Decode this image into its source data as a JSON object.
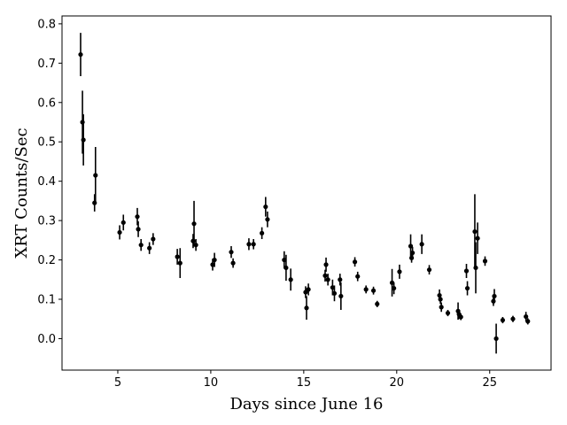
{
  "chart_data": {
    "type": "scatter",
    "title": "",
    "xlabel": "Days since June 16",
    "ylabel": "XRT Counts/Sec",
    "xlim": [
      2.0,
      28.3
    ],
    "ylim": [
      -0.08,
      0.82
    ],
    "xticks": [
      5,
      10,
      15,
      20,
      25
    ],
    "xtick_labels": [
      "5",
      "10",
      "15",
      "20",
      "25"
    ],
    "yticks": [
      0.0,
      0.1,
      0.2,
      0.3,
      0.4,
      0.5,
      0.6,
      0.7,
      0.8
    ],
    "ytick_labels": [
      "0.0",
      "0.1",
      "0.2",
      "0.3",
      "0.4",
      "0.5",
      "0.6",
      "0.7",
      "0.8"
    ],
    "grid": false,
    "marker_color": "#000000",
    "points": [
      {
        "x": 3.0,
        "y": 0.722,
        "err": 0.055
      },
      {
        "x": 3.1,
        "y": 0.55,
        "err": 0.08
      },
      {
        "x": 3.15,
        "y": 0.505,
        "err": 0.065
      },
      {
        "x": 3.75,
        "y": 0.345,
        "err": 0.022
      },
      {
        "x": 3.8,
        "y": 0.415,
        "err": 0.072
      },
      {
        "x": 5.1,
        "y": 0.27,
        "err": 0.018
      },
      {
        "x": 5.3,
        "y": 0.295,
        "err": 0.02
      },
      {
        "x": 6.05,
        "y": 0.31,
        "err": 0.022
      },
      {
        "x": 6.1,
        "y": 0.278,
        "err": 0.02
      },
      {
        "x": 6.25,
        "y": 0.238,
        "err": 0.015
      },
      {
        "x": 6.7,
        "y": 0.23,
        "err": 0.015
      },
      {
        "x": 6.9,
        "y": 0.253,
        "err": 0.015
      },
      {
        "x": 8.2,
        "y": 0.208,
        "err": 0.02
      },
      {
        "x": 8.35,
        "y": 0.192,
        "err": 0.038
      },
      {
        "x": 9.05,
        "y": 0.248,
        "err": 0.018
      },
      {
        "x": 9.1,
        "y": 0.292,
        "err": 0.058
      },
      {
        "x": 9.2,
        "y": 0.238,
        "err": 0.015
      },
      {
        "x": 10.1,
        "y": 0.188,
        "err": 0.015
      },
      {
        "x": 10.2,
        "y": 0.2,
        "err": 0.018
      },
      {
        "x": 11.1,
        "y": 0.22,
        "err": 0.015
      },
      {
        "x": 11.2,
        "y": 0.192,
        "err": 0.012
      },
      {
        "x": 12.05,
        "y": 0.24,
        "err": 0.015
      },
      {
        "x": 12.3,
        "y": 0.24,
        "err": 0.013
      },
      {
        "x": 12.75,
        "y": 0.268,
        "err": 0.015
      },
      {
        "x": 12.95,
        "y": 0.335,
        "err": 0.025
      },
      {
        "x": 13.05,
        "y": 0.303,
        "err": 0.02
      },
      {
        "x": 13.95,
        "y": 0.2,
        "err": 0.022
      },
      {
        "x": 14.05,
        "y": 0.18,
        "err": 0.033
      },
      {
        "x": 14.3,
        "y": 0.15,
        "err": 0.028
      },
      {
        "x": 15.1,
        "y": 0.118,
        "err": 0.015
      },
      {
        "x": 15.15,
        "y": 0.078,
        "err": 0.03
      },
      {
        "x": 15.25,
        "y": 0.125,
        "err": 0.015
      },
      {
        "x": 16.15,
        "y": 0.16,
        "err": 0.015
      },
      {
        "x": 16.2,
        "y": 0.188,
        "err": 0.018
      },
      {
        "x": 16.3,
        "y": 0.15,
        "err": 0.015
      },
      {
        "x": 16.55,
        "y": 0.13,
        "err": 0.02
      },
      {
        "x": 16.65,
        "y": 0.115,
        "err": 0.02
      },
      {
        "x": 16.95,
        "y": 0.15,
        "err": 0.015
      },
      {
        "x": 17.0,
        "y": 0.108,
        "err": 0.035
      },
      {
        "x": 17.75,
        "y": 0.195,
        "err": 0.012
      },
      {
        "x": 17.9,
        "y": 0.158,
        "err": 0.012
      },
      {
        "x": 18.35,
        "y": 0.125,
        "err": 0.01
      },
      {
        "x": 18.75,
        "y": 0.122,
        "err": 0.01
      },
      {
        "x": 18.95,
        "y": 0.088,
        "err": 0.008
      },
      {
        "x": 19.75,
        "y": 0.142,
        "err": 0.035
      },
      {
        "x": 19.85,
        "y": 0.128,
        "err": 0.015
      },
      {
        "x": 20.15,
        "y": 0.17,
        "err": 0.018
      },
      {
        "x": 20.75,
        "y": 0.235,
        "err": 0.03
      },
      {
        "x": 20.8,
        "y": 0.205,
        "err": 0.012
      },
      {
        "x": 20.85,
        "y": 0.218,
        "err": 0.015
      },
      {
        "x": 21.35,
        "y": 0.24,
        "err": 0.025
      },
      {
        "x": 21.75,
        "y": 0.175,
        "err": 0.012
      },
      {
        "x": 22.3,
        "y": 0.11,
        "err": 0.015
      },
      {
        "x": 22.35,
        "y": 0.1,
        "err": 0.012
      },
      {
        "x": 22.4,
        "y": 0.08,
        "err": 0.012
      },
      {
        "x": 22.75,
        "y": 0.065,
        "err": 0.008
      },
      {
        "x": 23.3,
        "y": 0.07,
        "err": 0.022
      },
      {
        "x": 23.35,
        "y": 0.062,
        "err": 0.012
      },
      {
        "x": 23.45,
        "y": 0.055,
        "err": 0.008
      },
      {
        "x": 23.75,
        "y": 0.172,
        "err": 0.018
      },
      {
        "x": 23.8,
        "y": 0.128,
        "err": 0.018
      },
      {
        "x": 24.2,
        "y": 0.272,
        "err": 0.095
      },
      {
        "x": 24.25,
        "y": 0.18,
        "err": 0.065
      },
      {
        "x": 24.35,
        "y": 0.255,
        "err": 0.04
      },
      {
        "x": 24.75,
        "y": 0.197,
        "err": 0.012
      },
      {
        "x": 25.2,
        "y": 0.095,
        "err": 0.012
      },
      {
        "x": 25.25,
        "y": 0.108,
        "err": 0.018
      },
      {
        "x": 25.35,
        "y": 0.0,
        "err": 0.038
      },
      {
        "x": 25.7,
        "y": 0.047,
        "err": 0.008
      },
      {
        "x": 26.25,
        "y": 0.05,
        "err": 0.008
      },
      {
        "x": 26.95,
        "y": 0.056,
        "err": 0.012
      },
      {
        "x": 27.05,
        "y": 0.044,
        "err": 0.008
      }
    ]
  }
}
